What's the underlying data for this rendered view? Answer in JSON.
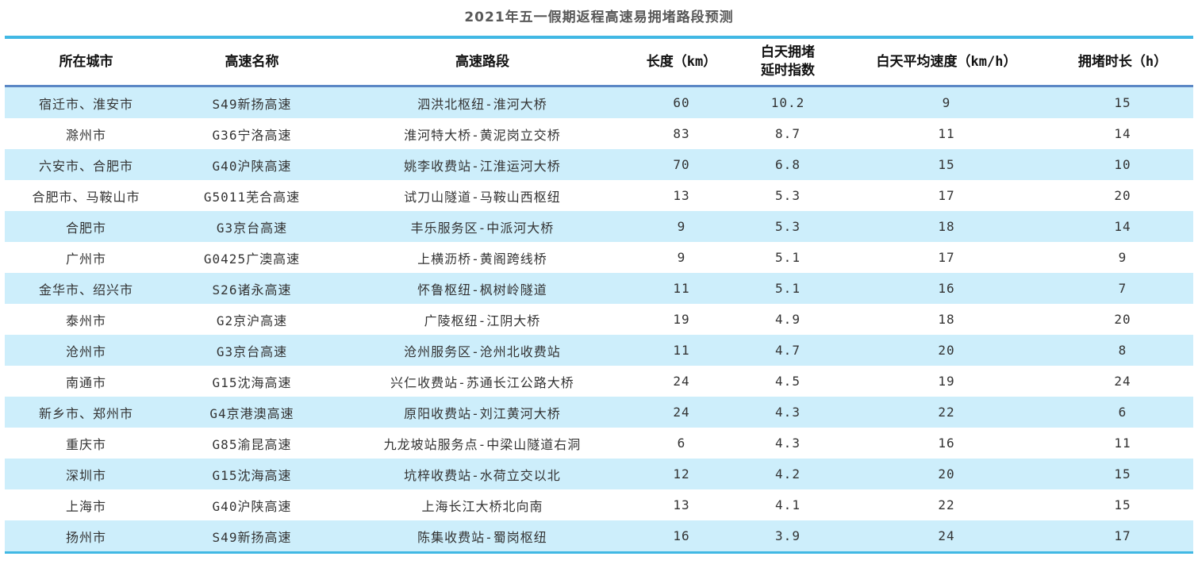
{
  "title": "2021年五一假期返程高速易拥堵路段预测",
  "colors": {
    "accent_line_outer": "#41b8e4",
    "header_divider": "#5b87c5",
    "row_stripe": "#cdeefb",
    "body_text": "#333333",
    "title_text": "#595959"
  },
  "table": {
    "headers": [
      "所在城市",
      "高速名称",
      "高速路段",
      "长度（km）",
      "白天拥堵\n延时指数",
      "白天平均速度（km/h）",
      "拥堵时长（h）"
    ],
    "rows": [
      [
        "宿迁市、淮安市",
        "S49新扬高速",
        "泗洪北枢纽-淮河大桥",
        "60",
        "10.2",
        "9",
        "15"
      ],
      [
        "滁州市",
        "G36宁洛高速",
        "淮河特大桥-黄泥岗立交桥",
        "83",
        "8.7",
        "11",
        "14"
      ],
      [
        "六安市、合肥市",
        "G40沪陕高速",
        "姚李收费站-江淮运河大桥",
        "70",
        "6.8",
        "15",
        "10"
      ],
      [
        "合肥市、马鞍山市",
        "G5011芜合高速",
        "试刀山隧道-马鞍山西枢纽",
        "13",
        "5.3",
        "17",
        "20"
      ],
      [
        "合肥市",
        "G3京台高速",
        "丰乐服务区-中派河大桥",
        "9",
        "5.3",
        "18",
        "14"
      ],
      [
        "广州市",
        "G0425广澳高速",
        "上横沥桥-黄阁跨线桥",
        "9",
        "5.1",
        "17",
        "9"
      ],
      [
        "金华市、绍兴市",
        "S26诸永高速",
        "怀鲁枢纽-枫树岭隧道",
        "11",
        "5.1",
        "16",
        "7"
      ],
      [
        "泰州市",
        "G2京沪高速",
        "广陵枢纽-江阴大桥",
        "19",
        "4.9",
        "18",
        "20"
      ],
      [
        "沧州市",
        "G3京台高速",
        "沧州服务区-沧州北收费站",
        "11",
        "4.7",
        "20",
        "8"
      ],
      [
        "南通市",
        "G15沈海高速",
        "兴仁收费站-苏通长江公路大桥",
        "24",
        "4.5",
        "19",
        "24"
      ],
      [
        "新乡市、郑州市",
        "G4京港澳高速",
        "原阳收费站-刘江黄河大桥",
        "24",
        "4.3",
        "22",
        "6"
      ],
      [
        "重庆市",
        "G85渝昆高速",
        "九龙坡站服务点-中梁山隧道右洞",
        "6",
        "4.3",
        "16",
        "11"
      ],
      [
        "深圳市",
        "G15沈海高速",
        "坑梓收费站-水荷立交以北",
        "12",
        "4.2",
        "20",
        "15"
      ],
      [
        "上海市",
        "G40沪陕高速",
        "上海长江大桥北向南",
        "13",
        "4.1",
        "22",
        "15"
      ],
      [
        "扬州市",
        "S49新扬高速",
        "陈集收费站-蜀岗枢纽",
        "16",
        "3.9",
        "24",
        "17"
      ]
    ]
  },
  "chart_data": {
    "type": "table",
    "title": "2021年五一假期返程高速易拥堵路段预测",
    "columns": [
      "所在城市",
      "高速名称",
      "高速路段",
      "长度（km）",
      "白天拥堵延时指数",
      "白天平均速度（km/h）",
      "拥堵时长（h）"
    ],
    "rows": [
      {
        "所在城市": "宿迁市、淮安市",
        "高速名称": "S49新扬高速",
        "高速路段": "泗洪北枢纽-淮河大桥",
        "长度_km": 60,
        "白天拥堵延时指数": 10.2,
        "白天平均速度_kmh": 9,
        "拥堵时长_h": 15
      },
      {
        "所在城市": "滁州市",
        "高速名称": "G36宁洛高速",
        "高速路段": "淮河特大桥-黄泥岗立交桥",
        "长度_km": 83,
        "白天拥堵延时指数": 8.7,
        "白天平均速度_kmh": 11,
        "拥堵时长_h": 14
      },
      {
        "所在城市": "六安市、合肥市",
        "高速名称": "G40沪陕高速",
        "高速路段": "姚李收费站-江淮运河大桥",
        "长度_km": 70,
        "白天拥堵延时指数": 6.8,
        "白天平均速度_kmh": 15,
        "拥堵时长_h": 10
      },
      {
        "所在城市": "合肥市、马鞍山市",
        "高速名称": "G5011芜合高速",
        "高速路段": "试刀山隧道-马鞍山西枢纽",
        "长度_km": 13,
        "白天拥堵延时指数": 5.3,
        "白天平均速度_kmh": 17,
        "拥堵时长_h": 20
      },
      {
        "所在城市": "合肥市",
        "高速名称": "G3京台高速",
        "高速路段": "丰乐服务区-中派河大桥",
        "长度_km": 9,
        "白天拥堵延时指数": 5.3,
        "白天平均速度_kmh": 18,
        "拥堵时长_h": 14
      },
      {
        "所在城市": "广州市",
        "高速名称": "G0425广澳高速",
        "高速路段": "上横沥桥-黄阁跨线桥",
        "长度_km": 9,
        "白天拥堵延时指数": 5.1,
        "白天平均速度_kmh": 17,
        "拥堵时长_h": 9
      },
      {
        "所在城市": "金华市、绍兴市",
        "高速名称": "S26诸永高速",
        "高速路段": "怀鲁枢纽-枫树岭隧道",
        "长度_km": 11,
        "白天拥堵延时指数": 5.1,
        "白天平均速度_kmh": 16,
        "拥堵时长_h": 7
      },
      {
        "所在城市": "泰州市",
        "高速名称": "G2京沪高速",
        "高速路段": "广陵枢纽-江阴大桥",
        "长度_km": 19,
        "白天拥堵延时指数": 4.9,
        "白天平均速度_kmh": 18,
        "拥堵时长_h": 20
      },
      {
        "所在城市": "沧州市",
        "高速名称": "G3京台高速",
        "高速路段": "沧州服务区-沧州北收费站",
        "长度_km": 11,
        "白天拥堵延时指数": 4.7,
        "白天平均速度_kmh": 20,
        "拥堵时长_h": 8
      },
      {
        "所在城市": "南通市",
        "高速名称": "G15沈海高速",
        "高速路段": "兴仁收费站-苏通长江公路大桥",
        "长度_km": 24,
        "白天拥堵延时指数": 4.5,
        "白天平均速度_kmh": 19,
        "拥堵时长_h": 24
      },
      {
        "所在城市": "新乡市、郑州市",
        "高速名称": "G4京港澳高速",
        "高速路段": "原阳收费站-刘江黄河大桥",
        "长度_km": 24,
        "白天拥堵延时指数": 4.3,
        "白天平均速度_kmh": 22,
        "拥堵时长_h": 6
      },
      {
        "所在城市": "重庆市",
        "高速名称": "G85渝昆高速",
        "高速路段": "九龙坡站服务点-中梁山隧道右洞",
        "长度_km": 6,
        "白天拥堵延时指数": 4.3,
        "白天平均速度_kmh": 16,
        "拥堵时长_h": 11
      },
      {
        "所在城市": "深圳市",
        "高速名称": "G15沈海高速",
        "高速路段": "坑梓收费站-水荷立交以北",
        "长度_km": 12,
        "白天拥堵延时指数": 4.2,
        "白天平均速度_kmh": 20,
        "拥堵时长_h": 15
      },
      {
        "所在城市": "上海市",
        "高速名称": "G40沪陕高速",
        "高速路段": "上海长江大桥北向南",
        "长度_km": 13,
        "白天拥堵延时指数": 4.1,
        "白天平均速度_kmh": 22,
        "拥堵时长_h": 15
      },
      {
        "所在城市": "扬州市",
        "高速名称": "S49新扬高速",
        "高速路段": "陈集收费站-蜀岗枢纽",
        "长度_km": 16,
        "白天拥堵延时指数": 3.9,
        "白天平均速度_kmh": 24,
        "拥堵时长_h": 17
      }
    ],
    "layout": {
      "striped_rows": true,
      "stripe_pattern": "odd rows light blue, even rows white",
      "alignment": "center"
    }
  }
}
